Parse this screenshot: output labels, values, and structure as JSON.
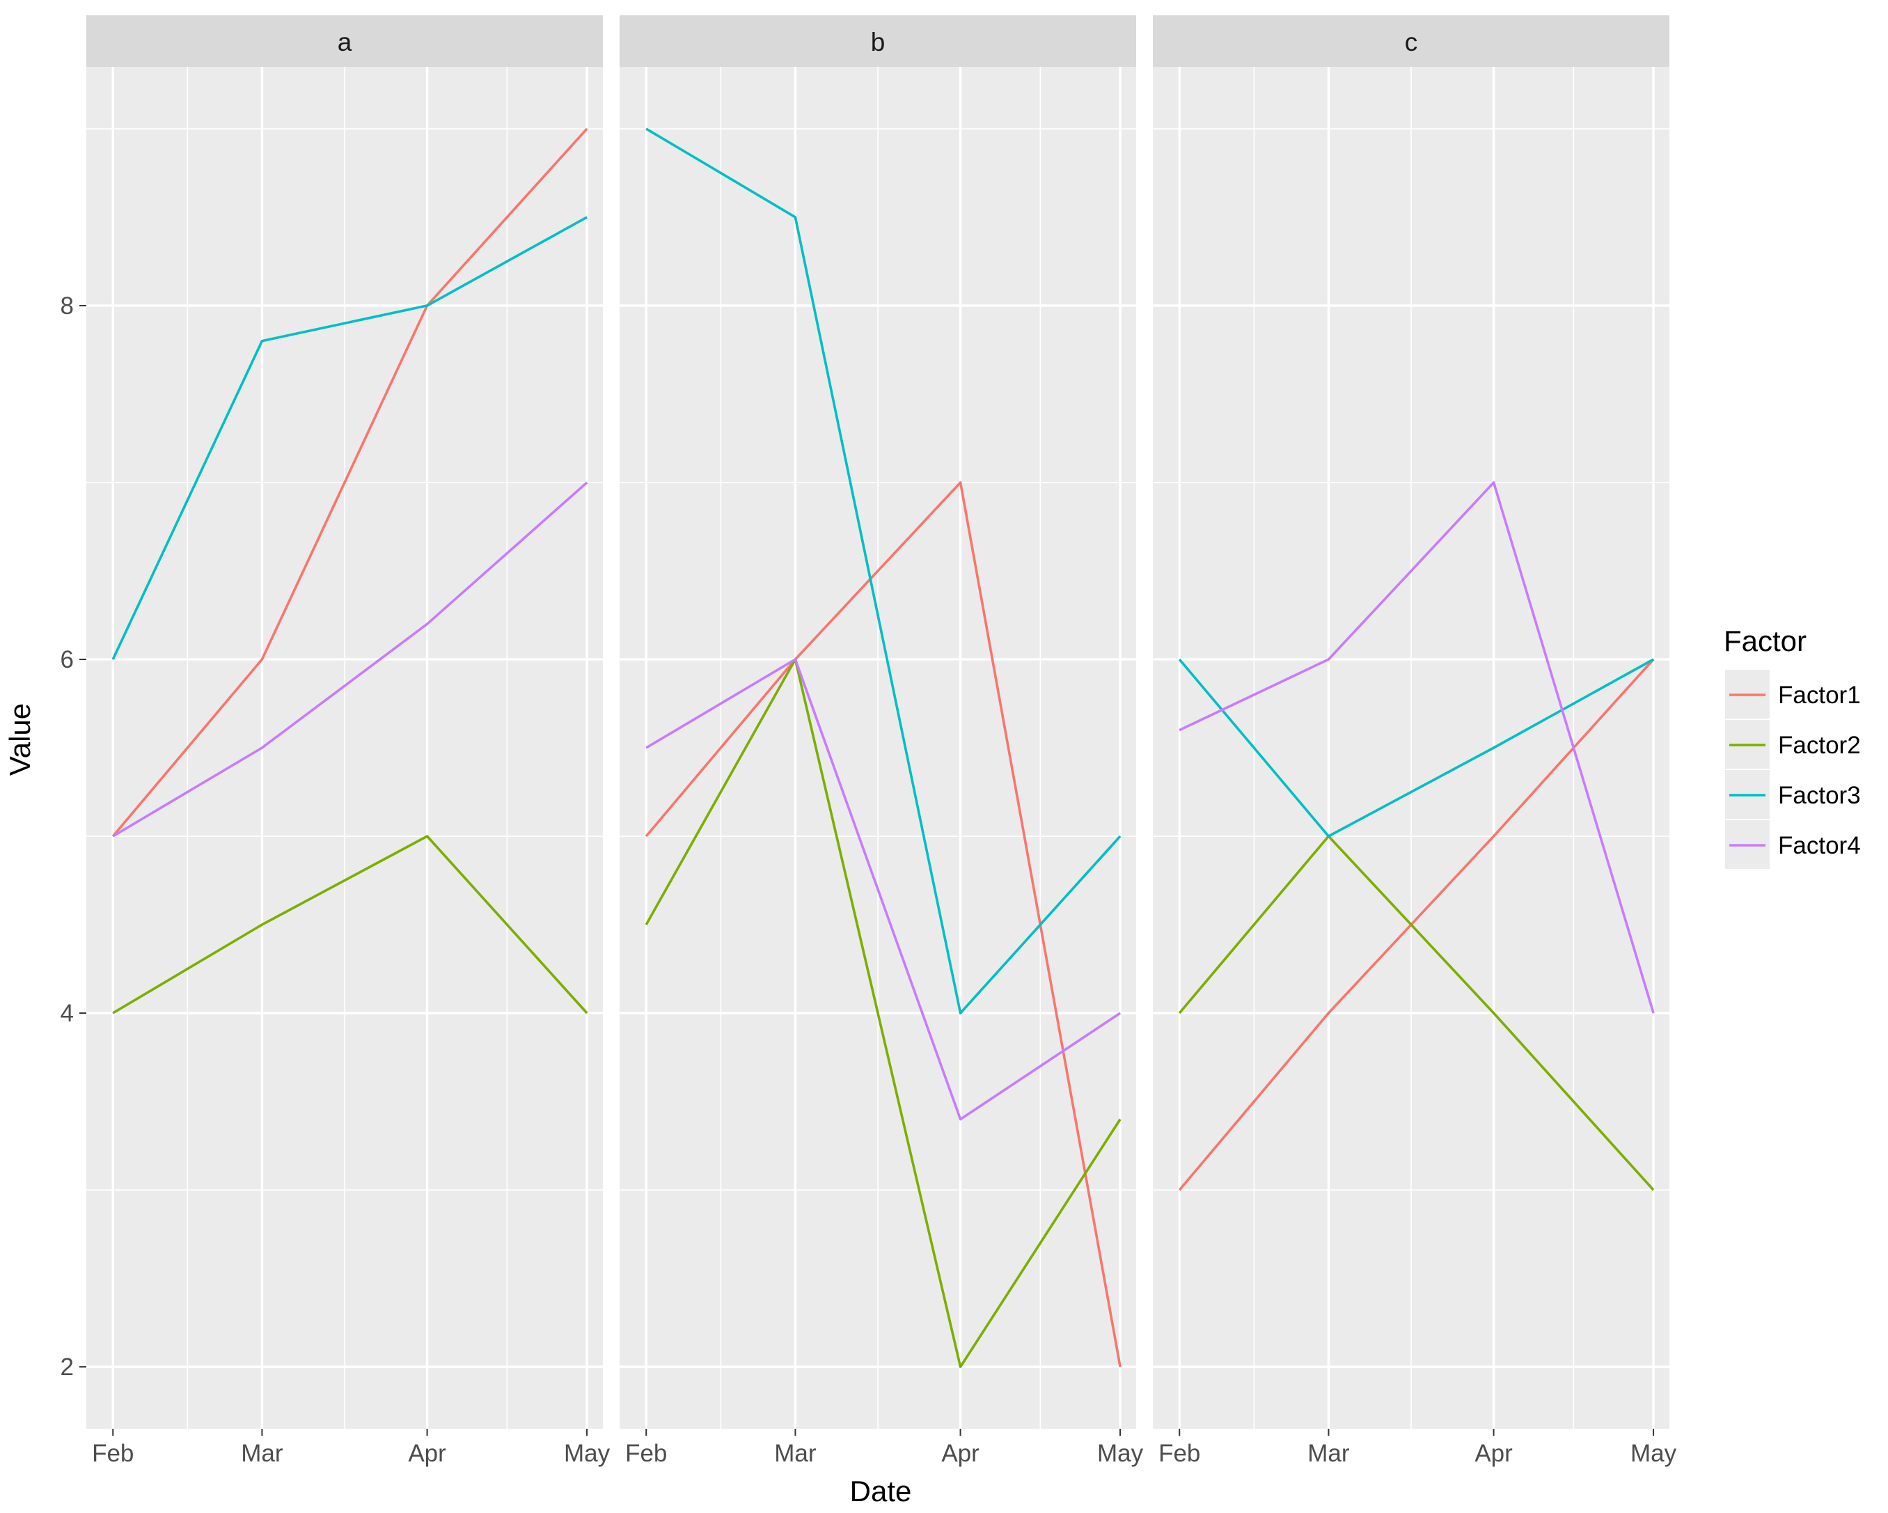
{
  "chart_data": {
    "type": "line",
    "facet_by": [
      "a",
      "b",
      "c"
    ],
    "xlabel": "Date",
    "ylabel": "Value",
    "x_ticks": [
      "Feb",
      "Mar",
      "Apr",
      "May"
    ],
    "x_dates": [
      "2017-02-01",
      "2017-03-01",
      "2017-04-01",
      "2017-05-01"
    ],
    "xlim": [
      "2017-01-27",
      "2017-05-04"
    ],
    "y_ticks": [
      2,
      4,
      6,
      8
    ],
    "ylim": [
      1.65,
      9.35
    ],
    "grid": true,
    "legend": {
      "title": "Factor",
      "position": "right",
      "entries": [
        "Factor1",
        "Factor2",
        "Factor3",
        "Factor4"
      ]
    },
    "colors": {
      "Factor1": "#F8766D",
      "Factor2": "#7CAE00",
      "Factor3": "#00BFC4",
      "Factor4": "#C77CFF",
      "panel_bg": "#EBEBEB",
      "strip_bg": "#D9D9D9",
      "grid": "#FFFFFF"
    },
    "panels": [
      {
        "label": "a",
        "series": [
          {
            "name": "Factor1",
            "values": [
              5,
              6,
              8,
              9
            ]
          },
          {
            "name": "Factor2",
            "values": [
              4,
              4.5,
              5,
              4
            ]
          },
          {
            "name": "Factor3",
            "values": [
              6,
              7.8,
              8,
              8.5
            ]
          },
          {
            "name": "Factor4",
            "values": [
              5,
              5.5,
              6.2,
              7
            ]
          }
        ]
      },
      {
        "label": "b",
        "series": [
          {
            "name": "Factor1",
            "values": [
              5,
              6,
              7,
              2
            ]
          },
          {
            "name": "Factor2",
            "values": [
              4.5,
              6,
              2,
              3.4
            ]
          },
          {
            "name": "Factor3",
            "values": [
              9,
              8.5,
              4,
              5
            ]
          },
          {
            "name": "Factor4",
            "values": [
              5.5,
              6,
              3.4,
              4
            ]
          }
        ]
      },
      {
        "label": "c",
        "series": [
          {
            "name": "Factor1",
            "values": [
              3,
              4,
              5,
              6
            ]
          },
          {
            "name": "Factor2",
            "values": [
              4,
              5,
              4,
              3
            ]
          },
          {
            "name": "Factor3",
            "values": [
              6,
              5,
              5.5,
              6
            ]
          },
          {
            "name": "Factor4",
            "values": [
              5.6,
              6,
              7,
              4
            ]
          }
        ]
      }
    ]
  }
}
